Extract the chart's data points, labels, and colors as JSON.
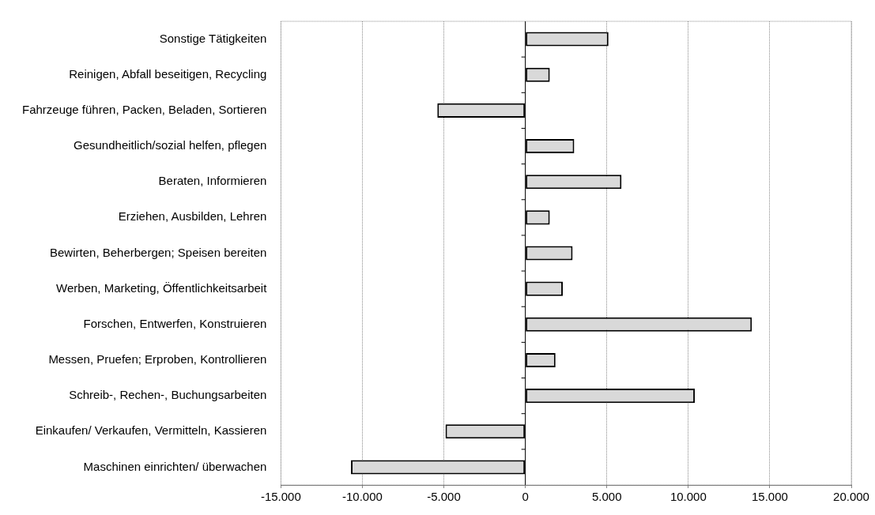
{
  "chart_data": {
    "type": "bar",
    "orientation": "horizontal",
    "categories": [
      "Sonstige Tätigkeiten",
      "Reinigen, Abfall beseitigen, Recycling",
      "Fahrzeuge führen, Packen, Beladen, Sortieren",
      "Gesundheitlich/sozial helfen, pflegen",
      "Beraten, Informieren",
      "Erziehen, Ausbilden, Lehren",
      "Bewirten, Beherbergen; Speisen bereiten",
      "Werben, Marketing, Öffentlichkeitsarbeit",
      "Forschen, Entwerfen, Konstruieren",
      "Messen, Pruefen; Erproben, Kontrollieren",
      "Schreib-, Rechen-, Buchungsarbeiten",
      "Einkaufen/ Verkaufen, Vermitteln, Kassieren",
      "Maschinen einrichten/ überwachen"
    ],
    "values": [
      5100,
      1500,
      -5400,
      3000,
      5900,
      1500,
      2900,
      2300,
      13900,
      1850,
      10400,
      -4900,
      -10700
    ],
    "color": "#d9d9d9",
    "xlim": [
      -15000,
      20000
    ],
    "xticks": [
      {
        "value": -15000,
        "label": "-15.000"
      },
      {
        "value": -10000,
        "label": "-10.000"
      },
      {
        "value": -5000,
        "label": "-5.000"
      },
      0,
      {
        "value": 5000,
        "label": "5.000"
      },
      {
        "value": 10000,
        "label": "10.000"
      },
      {
        "value": 15000,
        "label": "15.000"
      },
      {
        "value": 20000,
        "label": "20.000"
      }
    ],
    "grid": "x",
    "legend": false
  }
}
